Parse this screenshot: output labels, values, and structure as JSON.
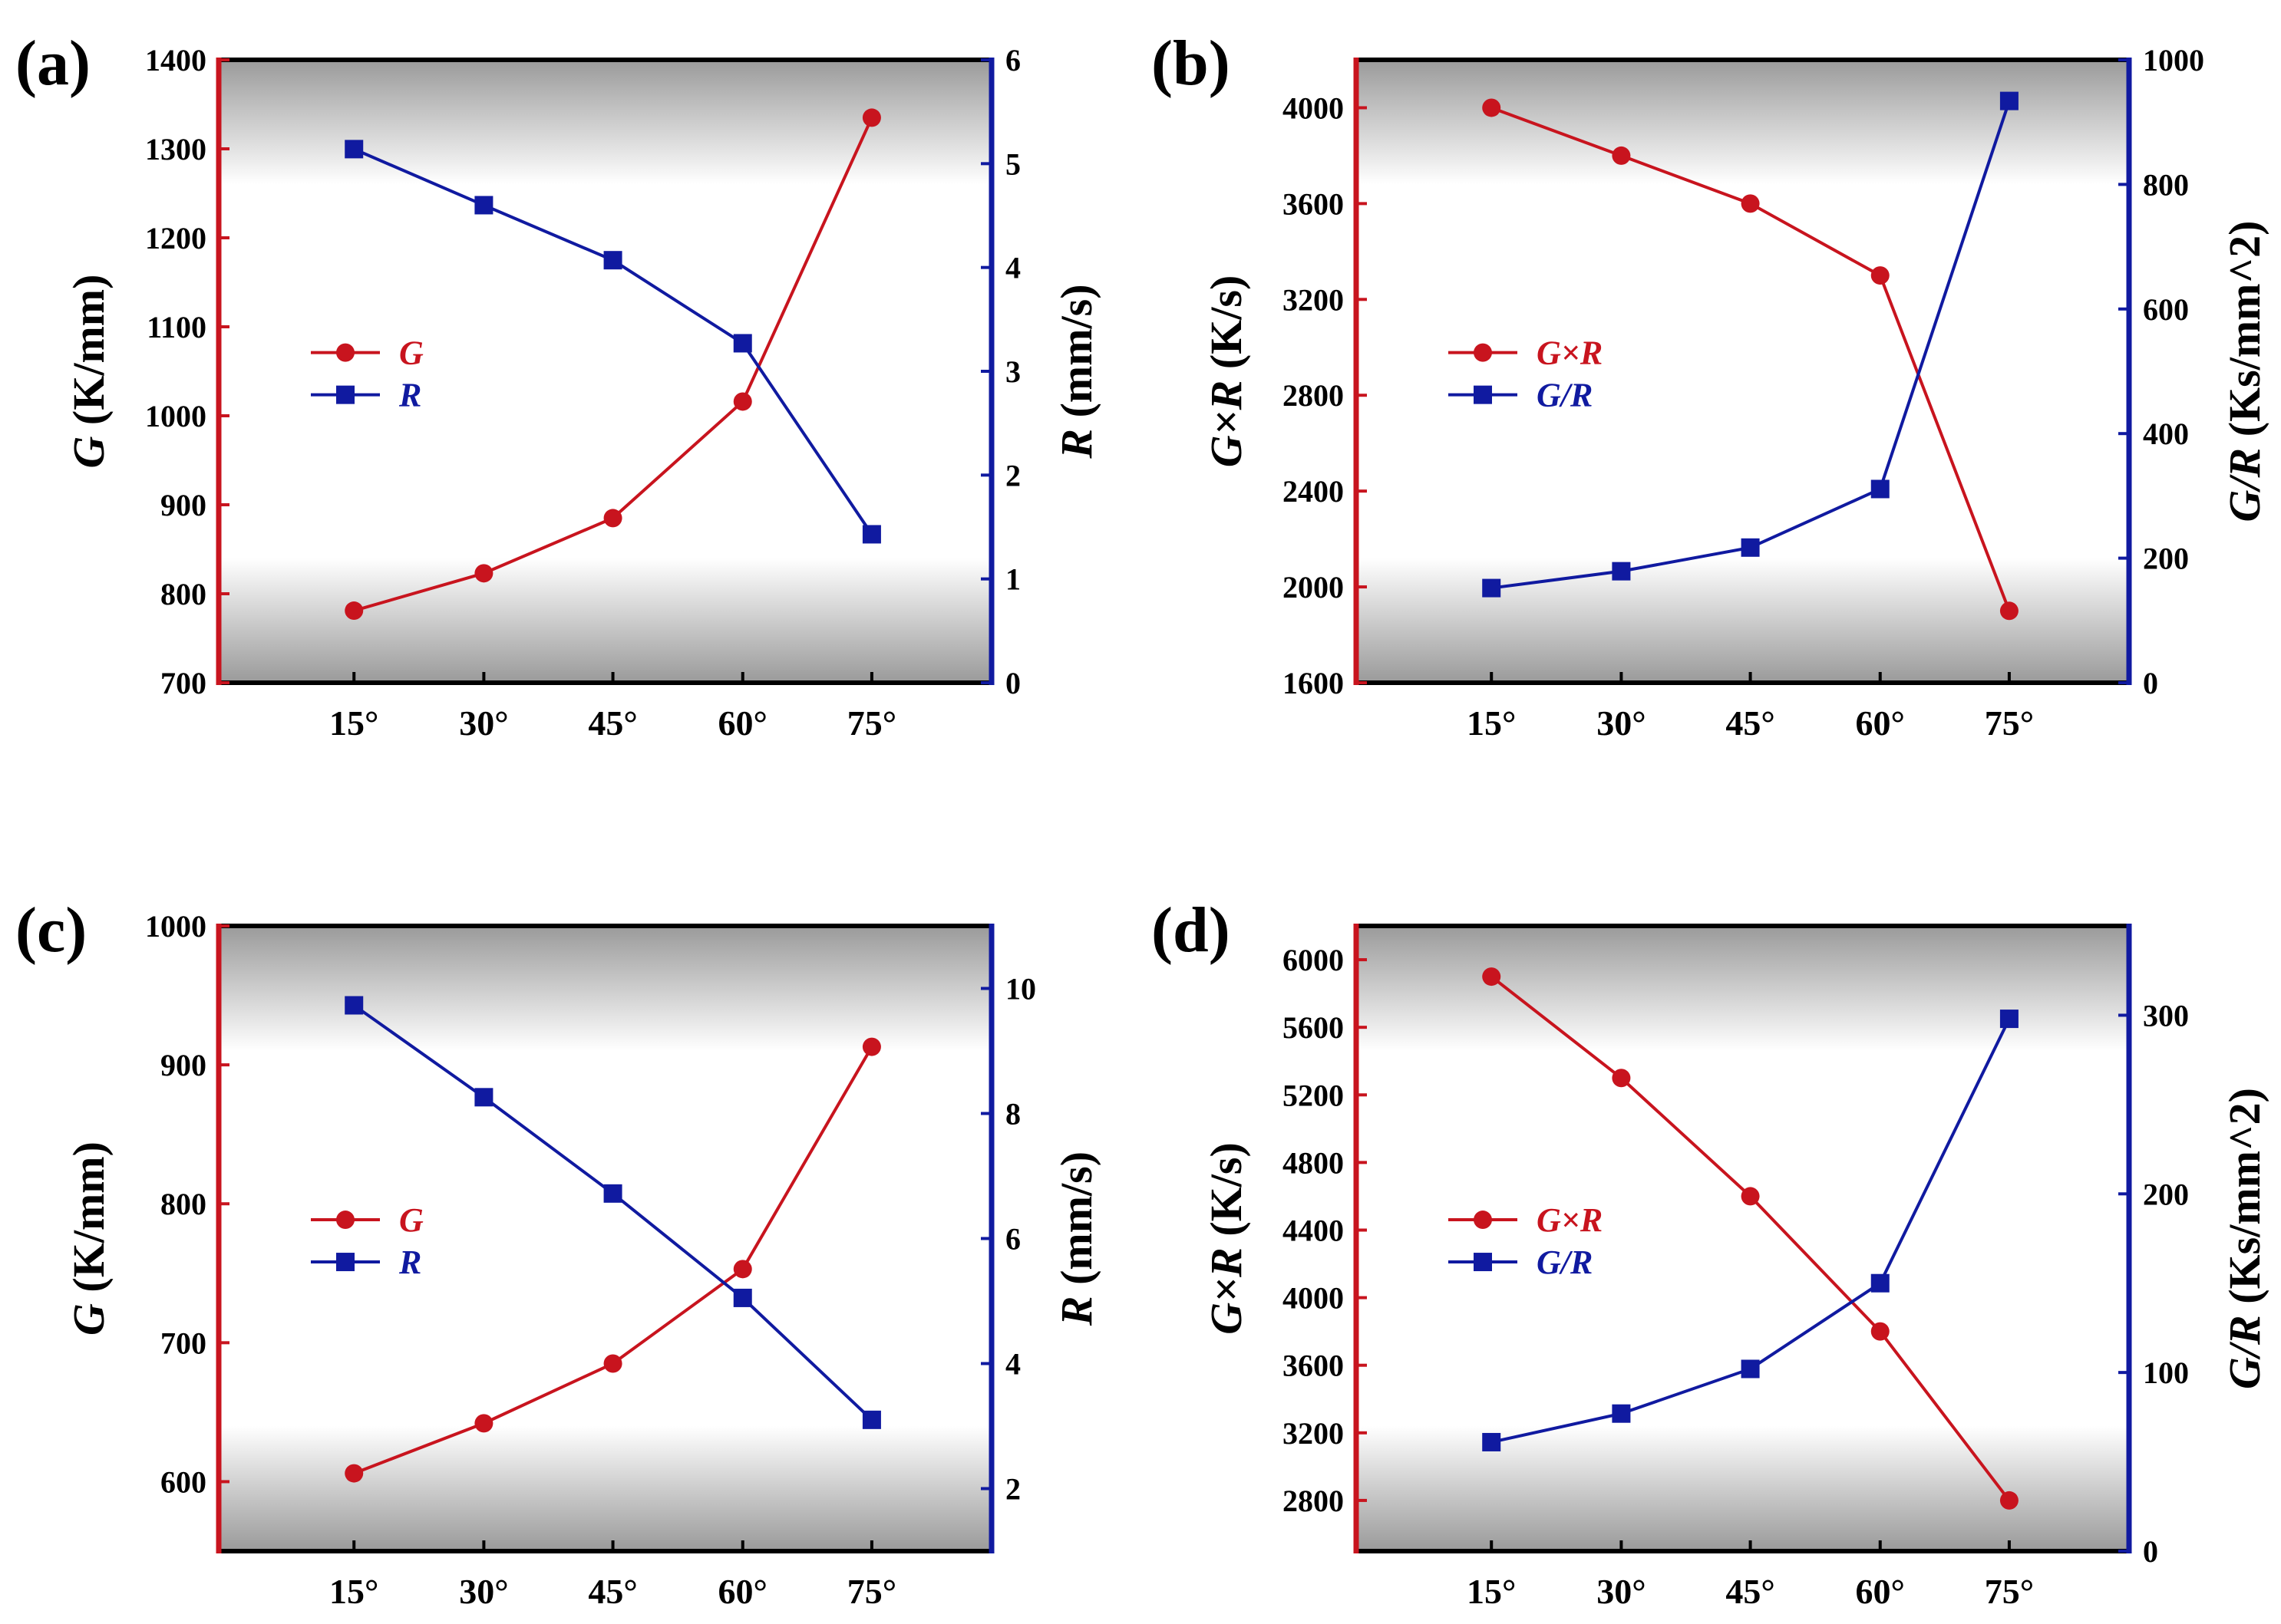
{
  "colors": {
    "left": "#c8141e",
    "right": "#101aa0",
    "frame": "#000000"
  },
  "chart_data": [
    {
      "panel": "(a)",
      "type": "line",
      "categories": [
        "15°",
        "30°",
        "45°",
        "60°",
        "75°"
      ],
      "left_axis": {
        "label_italic": "G",
        "label_rest": " (K/mm)",
        "range": [
          700,
          1400
        ],
        "ticks": [
          700,
          800,
          900,
          1000,
          1100,
          1200,
          1300,
          1400
        ]
      },
      "right_axis": {
        "label_italic": "R",
        "label_rest": " (mm/s)",
        "range": [
          0,
          6
        ],
        "ticks": [
          0,
          1,
          2,
          3,
          4,
          5,
          6
        ]
      },
      "series": [
        {
          "name": "G",
          "axis": "left",
          "marker": "circle",
          "color": "#c8141e",
          "values": [
            781,
            823,
            885,
            1016,
            1335
          ]
        },
        {
          "name": "R",
          "axis": "right",
          "marker": "square",
          "color": "#101aa0",
          "values": [
            5.14,
            4.6,
            4.07,
            3.27,
            1.43
          ]
        }
      ],
      "legend": "center-left"
    },
    {
      "panel": "(b)",
      "type": "line",
      "categories": [
        "15°",
        "30°",
        "45°",
        "60°",
        "75°"
      ],
      "left_axis": {
        "label_italic": "G×R",
        "label_rest": " (K/s)",
        "range": [
          1600,
          4200
        ],
        "ticks": [
          1600,
          2000,
          2400,
          2800,
          3200,
          3600,
          4000
        ]
      },
      "right_axis": {
        "label_italic": "G/R",
        "label_rest": " (Ks/mm^2)",
        "range": [
          0,
          1000
        ],
        "ticks": [
          0,
          200,
          400,
          600,
          800,
          1000
        ]
      },
      "series": [
        {
          "name": "G×R",
          "axis": "left",
          "marker": "circle",
          "color": "#c8141e",
          "values": [
            4000,
            3800,
            3600,
            3300,
            1900
          ]
        },
        {
          "name": "G/R",
          "axis": "right",
          "marker": "square",
          "color": "#101aa0",
          "values": [
            152,
            179,
            217,
            311,
            934
          ]
        }
      ],
      "legend": "center-left"
    },
    {
      "panel": "(c)",
      "type": "line",
      "categories": [
        "15°",
        "30°",
        "45°",
        "60°",
        "75°"
      ],
      "left_axis": {
        "label_italic": "G",
        "label_rest": " (K/mm)",
        "range": [
          550,
          1000
        ],
        "ticks": [
          600,
          700,
          800,
          900,
          1000
        ]
      },
      "right_axis": {
        "label_italic": "R",
        "label_rest": " (mm/s)",
        "range": [
          1,
          11
        ],
        "ticks": [
          2,
          4,
          6,
          8,
          10
        ]
      },
      "series": [
        {
          "name": "G",
          "axis": "left",
          "marker": "circle",
          "color": "#c8141e",
          "values": [
            606,
            642,
            685,
            753,
            913
          ]
        },
        {
          "name": "R",
          "axis": "right",
          "marker": "square",
          "color": "#101aa0",
          "values": [
            9.73,
            8.26,
            6.72,
            5.05,
            3.1
          ]
        }
      ],
      "legend": "center-left"
    },
    {
      "panel": "(d)",
      "type": "line",
      "categories": [
        "15°",
        "30°",
        "45°",
        "60°",
        "75°"
      ],
      "left_axis": {
        "label_italic": "G×R",
        "label_rest": " (K/s)",
        "range": [
          2500,
          6200
        ],
        "ticks": [
          2800,
          3200,
          3600,
          4000,
          4400,
          4800,
          5200,
          5600,
          6000
        ]
      },
      "right_axis": {
        "label_italic": "G/R",
        "label_rest": " (Ks/mm^2)",
        "range": [
          0,
          350
        ],
        "ticks": [
          0,
          100,
          200,
          300
        ]
      },
      "series": [
        {
          "name": "G×R",
          "axis": "left",
          "marker": "circle",
          "color": "#c8141e",
          "values": [
            5900,
            5300,
            4600,
            3800,
            2800
          ]
        },
        {
          "name": "G/R",
          "axis": "right",
          "marker": "square",
          "color": "#101aa0",
          "values": [
            61,
            77,
            102,
            150,
            298
          ]
        }
      ],
      "legend": "center-left"
    }
  ]
}
